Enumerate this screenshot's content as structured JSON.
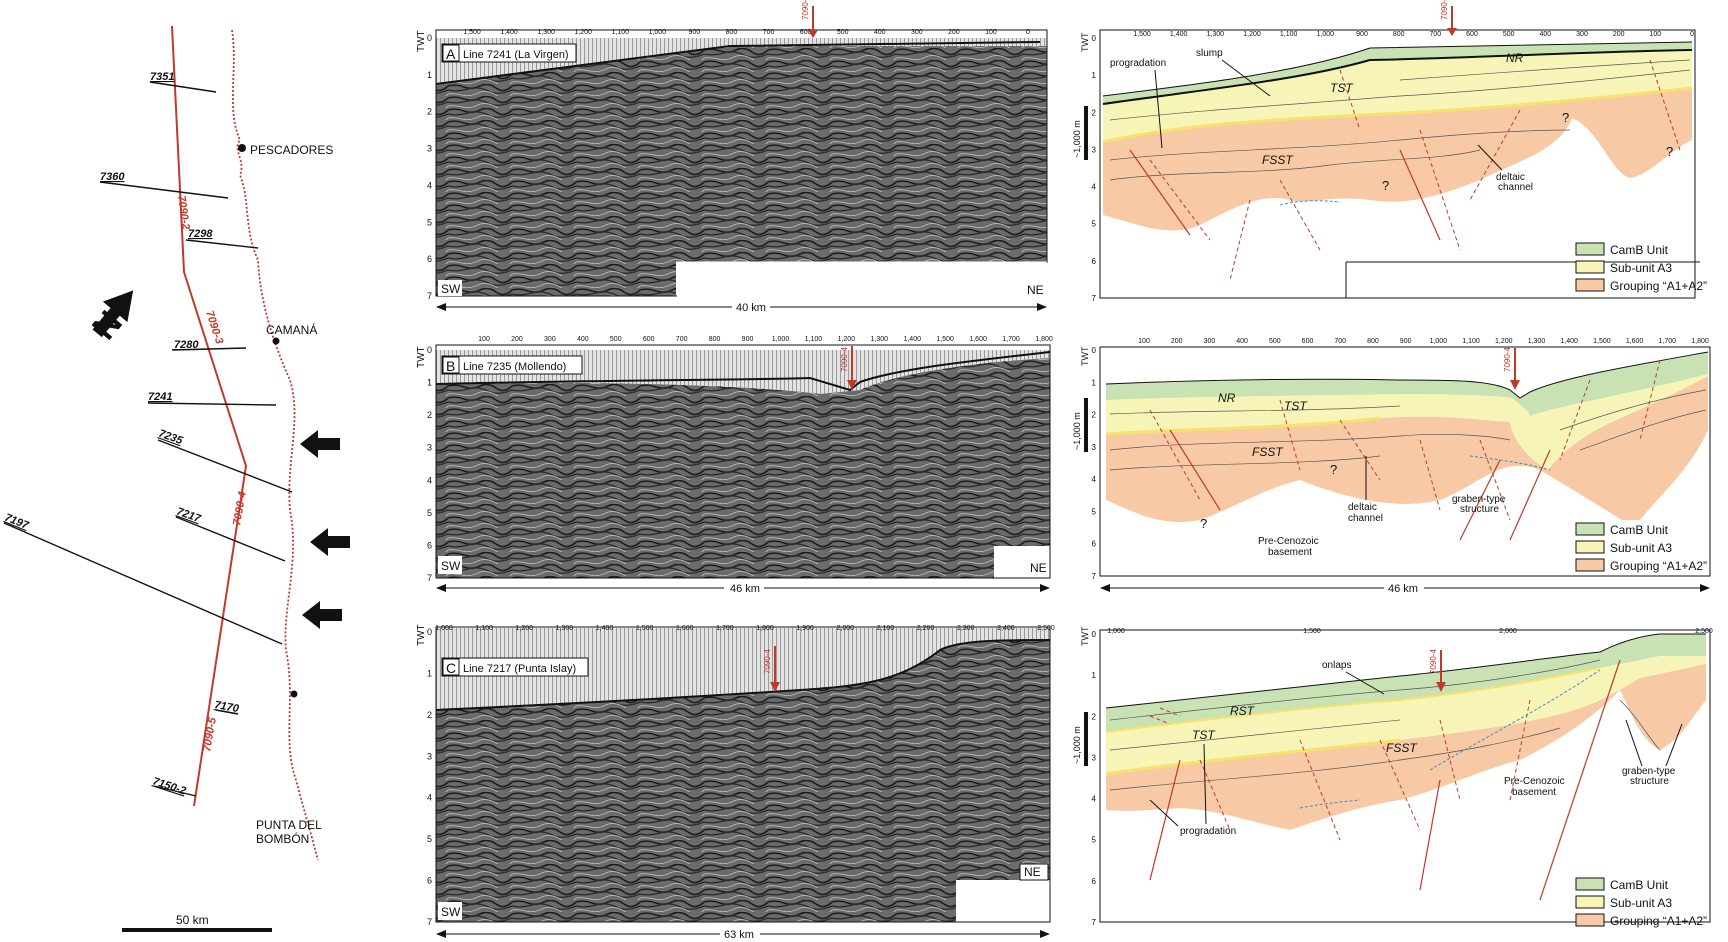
{
  "map": {
    "lines": [
      "7351",
      "7360",
      "7298",
      "7280",
      "7241",
      "7235",
      "7217",
      "7197",
      "7170",
      "7150-2"
    ],
    "ref_lines": [
      "7090-2",
      "7090-3",
      "7090-4",
      "7090-5"
    ],
    "places": [
      "PESCADORES",
      "CAMANÁ",
      "PUNTA DEL",
      "BOMBÓN"
    ],
    "north": "N",
    "scale": "50 km"
  },
  "panels": [
    {
      "letter": "A",
      "title": "Line 7241 (La Virgen)",
      "twt_label": "TWT",
      "twt_ticks": [
        "0",
        "1",
        "2",
        "3",
        "4",
        "5",
        "6",
        "7"
      ],
      "top_ticks": [
        "1,500",
        "1,400",
        "1,300",
        "1,200",
        "1,100",
        "1,000",
        "900",
        "800",
        "700",
        "600",
        "500",
        "400",
        "300",
        "200",
        "100",
        "0"
      ],
      "marker": "7090-3",
      "left_dir": "SW",
      "right_dir": "NE",
      "distance": "40 km",
      "interp": {
        "labels": [
          "progradation",
          "slump",
          "NR",
          "TST",
          "FSST",
          "deltaic",
          "channel",
          "?",
          "?",
          "?"
        ],
        "scale": "~1,000 m",
        "legend": [
          "CamB Unit",
          "Sub-unit A3",
          "Grouping “A1+A2”"
        ]
      }
    },
    {
      "letter": "B",
      "title": "Line 7235 (Mollendo)",
      "twt_label": "TWT",
      "twt_ticks": [
        "0",
        "1",
        "2",
        "3",
        "4",
        "5",
        "6",
        "7"
      ],
      "top_ticks": [
        "100",
        "200",
        "300",
        "400",
        "500",
        "600",
        "700",
        "800",
        "900",
        "1,000",
        "1,100",
        "1,200",
        "1,300",
        "1,400",
        "1,500",
        "1,600",
        "1,700",
        "1,800"
      ],
      "marker": "7090-4",
      "left_dir": "SW",
      "right_dir": "NE",
      "distance": "46 km",
      "interp": {
        "labels": [
          "NR",
          "TST",
          "FSST",
          "deltaic",
          "channel",
          "graben-type",
          "structure",
          "Pre-Cenozoic",
          "basement",
          "?",
          "?"
        ],
        "scale": "~1,000 m",
        "legend": [
          "CamB Unit",
          "Sub-unit A3",
          "Grouping “A1+A2”"
        ]
      }
    },
    {
      "letter": "C",
      "title": "Line 7217 (Punta Islay)",
      "twt_label": "TWT",
      "twt_ticks": [
        "0",
        "1",
        "2",
        "3",
        "4",
        "5",
        "6",
        "7"
      ],
      "top_ticks": [
        "1,000",
        "1,100",
        "1,200",
        "1,300",
        "1,400",
        "1,500",
        "1,600",
        "1,700",
        "1,800",
        "1,900",
        "2,000",
        "2,100",
        "2,200",
        "2,300",
        "2,400",
        "2,500"
      ],
      "marker": "7090-4",
      "left_dir": "SW",
      "right_dir": "NE",
      "distance": "63 km",
      "interp": {
        "top_ticks": [
          "1,000",
          "1,500",
          "2,000",
          "2,500"
        ],
        "labels": [
          "onlaps",
          "RST",
          "TST",
          "FSST",
          "progradation",
          "Pre-Cenozoic",
          "basement",
          "graben-type",
          "structure"
        ],
        "scale": "~1,000 m",
        "legend": [
          "CamB Unit",
          "Sub-unit A3",
          "Grouping “A1+A2”"
        ]
      }
    }
  ],
  "colors": {
    "camb": "#c9e2b3",
    "a3": "#f7f4b8",
    "a1a2": "#f8c9a5",
    "red": "#c0392b"
  }
}
